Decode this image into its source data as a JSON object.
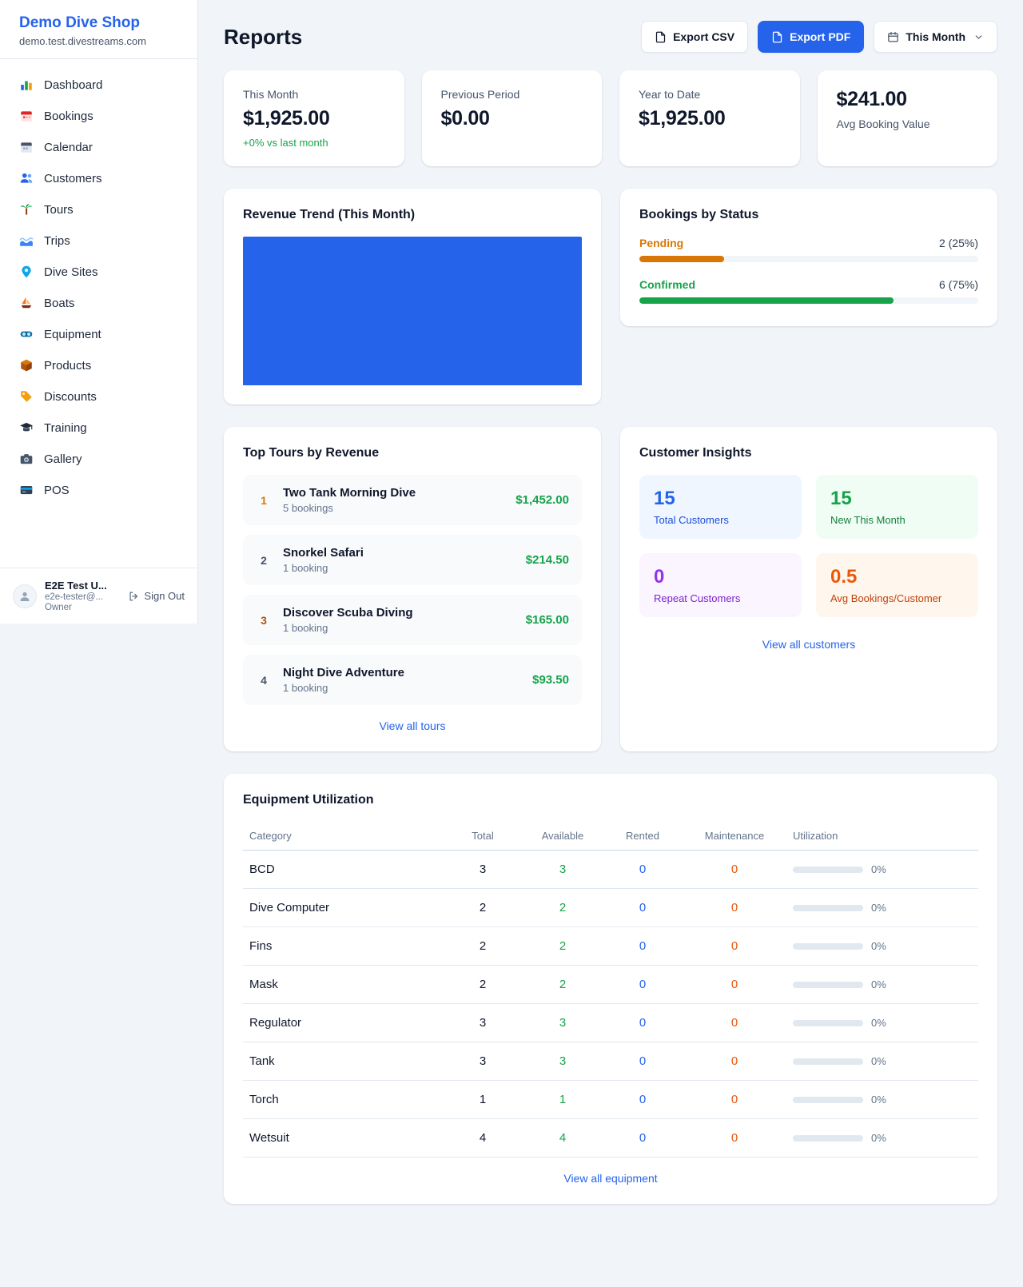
{
  "sidebar": {
    "shop_name": "Demo Dive Shop",
    "shop_domain": "demo.test.divestreams.com",
    "items": [
      {
        "label": "Dashboard",
        "icon": "bar-chart-icon"
      },
      {
        "label": "Bookings",
        "icon": "bookings-calendar-icon"
      },
      {
        "label": "Calendar",
        "icon": "calendar-icon"
      },
      {
        "label": "Customers",
        "icon": "people-icon"
      },
      {
        "label": "Tours",
        "icon": "palm-tree-icon"
      },
      {
        "label": "Trips",
        "icon": "wave-icon"
      },
      {
        "label": "Dive Sites",
        "icon": "map-pin-icon"
      },
      {
        "label": "Boats",
        "icon": "sailboat-icon"
      },
      {
        "label": "Equipment",
        "icon": "goggles-icon"
      },
      {
        "label": "Products",
        "icon": "box-icon"
      },
      {
        "label": "Discounts",
        "icon": "tag-icon"
      },
      {
        "label": "Training",
        "icon": "graduation-cap-icon"
      },
      {
        "label": "Gallery",
        "icon": "camera-icon"
      },
      {
        "label": "POS",
        "icon": "credit-card-icon"
      }
    ],
    "user": {
      "name": "E2E Test U...",
      "email": "e2e-tester@...",
      "role": "Owner",
      "sign_out_label": "Sign Out"
    }
  },
  "header": {
    "title": "Reports",
    "export_csv_label": "Export CSV",
    "export_pdf_label": "Export PDF",
    "period_label": "This Month"
  },
  "stats": {
    "this_month": {
      "label": "This Month",
      "value": "$1,925.00",
      "delta": "+0% vs last month"
    },
    "previous_period": {
      "label": "Previous Period",
      "value": "$0.00"
    },
    "year_to_date": {
      "label": "Year to Date",
      "value": "$1,925.00"
    },
    "avg_booking": {
      "value": "$241.00",
      "label": "Avg Booking Value"
    }
  },
  "revenue_trend": {
    "title": "Revenue Trend (This Month)",
    "chart_data": {
      "type": "bar",
      "categories": [
        "This Month"
      ],
      "values": [
        1925
      ],
      "ylim": [
        0,
        1925
      ],
      "bar_color": "#2563eb"
    }
  },
  "bookings_by_status": {
    "title": "Bookings by Status",
    "rows": [
      {
        "label": "Pending",
        "value": "2 (25%)",
        "percent": 25,
        "color": "#d97706"
      },
      {
        "label": "Confirmed",
        "value": "6 (75%)",
        "percent": 75,
        "color": "#16a34a"
      }
    ]
  },
  "top_tours": {
    "title": "Top Tours by Revenue",
    "items": [
      {
        "rank": "1",
        "name": "Two Tank Morning Dive",
        "bookings": "5 bookings",
        "revenue": "$1,452.00"
      },
      {
        "rank": "2",
        "name": "Snorkel Safari",
        "bookings": "1 booking",
        "revenue": "$214.50"
      },
      {
        "rank": "3",
        "name": "Discover Scuba Diving",
        "bookings": "1 booking",
        "revenue": "$165.00"
      },
      {
        "rank": "4",
        "name": "Night Dive Adventure",
        "bookings": "1 booking",
        "revenue": "$93.50"
      }
    ],
    "view_all_label": "View all tours"
  },
  "customer_insights": {
    "title": "Customer Insights",
    "tiles": [
      {
        "value": "15",
        "label": "Total Customers",
        "theme": "blue"
      },
      {
        "value": "15",
        "label": "New This Month",
        "theme": "green"
      },
      {
        "value": "0",
        "label": "Repeat Customers",
        "theme": "purple"
      },
      {
        "value": "0.5",
        "label": "Avg Bookings/Customer",
        "theme": "orange"
      }
    ],
    "view_all_label": "View all customers"
  },
  "equipment_utilization": {
    "title": "Equipment Utilization",
    "columns": [
      "Category",
      "Total",
      "Available",
      "Rented",
      "Maintenance",
      "Utilization"
    ],
    "rows": [
      {
        "category": "BCD",
        "total": "3",
        "available": "3",
        "rented": "0",
        "maintenance": "0",
        "utilization": "0%",
        "percent": 0
      },
      {
        "category": "Dive Computer",
        "total": "2",
        "available": "2",
        "rented": "0",
        "maintenance": "0",
        "utilization": "0%",
        "percent": 0
      },
      {
        "category": "Fins",
        "total": "2",
        "available": "2",
        "rented": "0",
        "maintenance": "0",
        "utilization": "0%",
        "percent": 0
      },
      {
        "category": "Mask",
        "total": "2",
        "available": "2",
        "rented": "0",
        "maintenance": "0",
        "utilization": "0%",
        "percent": 0
      },
      {
        "category": "Regulator",
        "total": "3",
        "available": "3",
        "rented": "0",
        "maintenance": "0",
        "utilization": "0%",
        "percent": 0
      },
      {
        "category": "Tank",
        "total": "3",
        "available": "3",
        "rented": "0",
        "maintenance": "0",
        "utilization": "0%",
        "percent": 0
      },
      {
        "category": "Torch",
        "total": "1",
        "available": "1",
        "rented": "0",
        "maintenance": "0",
        "utilization": "0%",
        "percent": 0
      },
      {
        "category": "Wetsuit",
        "total": "4",
        "available": "4",
        "rented": "0",
        "maintenance": "0",
        "utilization": "0%",
        "percent": 0
      }
    ],
    "view_all_label": "View all equipment"
  },
  "colors": {
    "accent": "#2563eb",
    "success": "#16a34a",
    "warning": "#d97706",
    "danger": "#ea580c",
    "purple": "#9333ea"
  }
}
